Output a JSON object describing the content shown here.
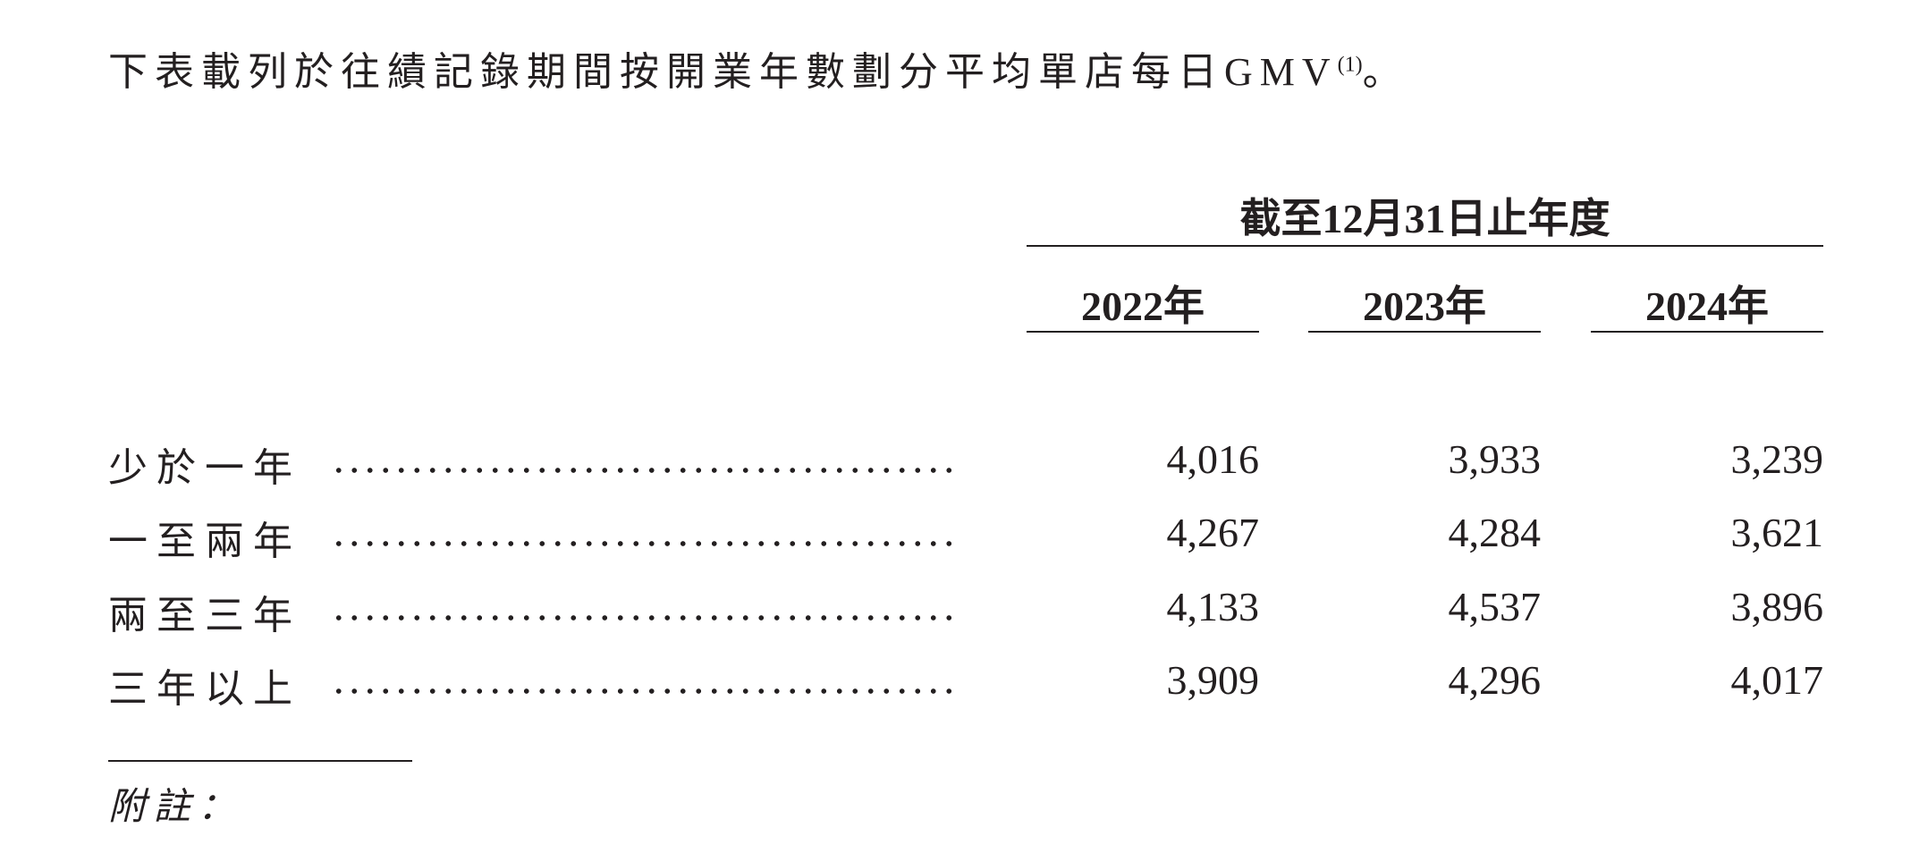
{
  "intro": {
    "text": "下表載列於往績記錄期間按開業年數劃分平均單店每日GMV",
    "note_ref": "(1)",
    "end": "。"
  },
  "table": {
    "group_header": "截至12月31日止年度",
    "columns": [
      "2022年",
      "2023年",
      "2024年"
    ],
    "rows": [
      {
        "label": "少於一年",
        "values": [
          "4,016",
          "3,933",
          "3,239"
        ]
      },
      {
        "label": "一至兩年",
        "values": [
          "4,267",
          "4,284",
          "3,621"
        ]
      },
      {
        "label": "兩至三年",
        "values": [
          "4,133",
          "4,537",
          "3,896"
        ]
      },
      {
        "label": "三年以上",
        "values": [
          "3,909",
          "4,296",
          "4,017"
        ]
      }
    ]
  },
  "footnote": {
    "title": "附註："
  }
}
